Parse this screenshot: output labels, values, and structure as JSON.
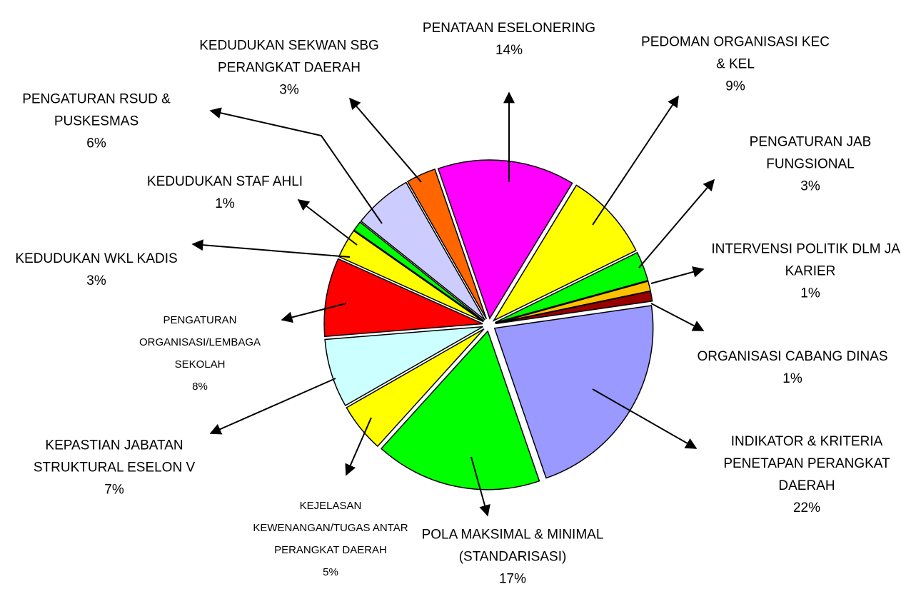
{
  "chart_data": {
    "type": "pie",
    "categories": [
      "PENATAAN ESELONERING",
      "PEDOMAN ORGANISASI KEC & KEL",
      "PENGATURAN JAB FUNGSIONAL",
      "INTERVENSI POLITIK DLM JAB KARIER",
      "ORGANISASI CABANG DINAS",
      "INDIKATOR & KRITERIA PENETAPAN PERANGKAT DAERAH",
      "POLA MAKSIMAL & MINIMAL (STANDARISASI)",
      "KEJELASAN KEWENANGAN/TUGAS ANTAR PERANGKAT DAERAH",
      "KEPASTIAN JABATAN STRUKTURAL ESELON V",
      "PENGATURAN ORGANISASI/LEMBAGA SEKOLAH",
      "KEDUDUKAN WKL KADIS",
      "KEDUDUKAN STAF AHLI",
      "PENGATURAN RSUD & PUSKESMAS",
      "KEDUDUKAN SEKWAN SBG PERANGKAT DAERAH"
    ],
    "values": [
      14,
      9,
      3,
      1,
      1,
      22,
      17,
      5,
      7,
      8,
      3,
      1,
      6,
      3
    ],
    "value_labels": [
      "14%",
      "9%",
      "3%",
      "1%",
      "1%",
      "22%",
      "17%",
      "5%",
      "7%",
      "8%",
      "3%",
      "1%",
      "6%",
      "3%"
    ],
    "colors": [
      "#ff00ff",
      "#ffff00",
      "#00ff00",
      "#ffc000",
      "#990000",
      "#9999ff",
      "#00ff00",
      "#ffff00",
      "#ccffff",
      "#ff0000",
      "#ffff00",
      "#00ff00",
      "#ccccff",
      "#ff6600"
    ]
  }
}
